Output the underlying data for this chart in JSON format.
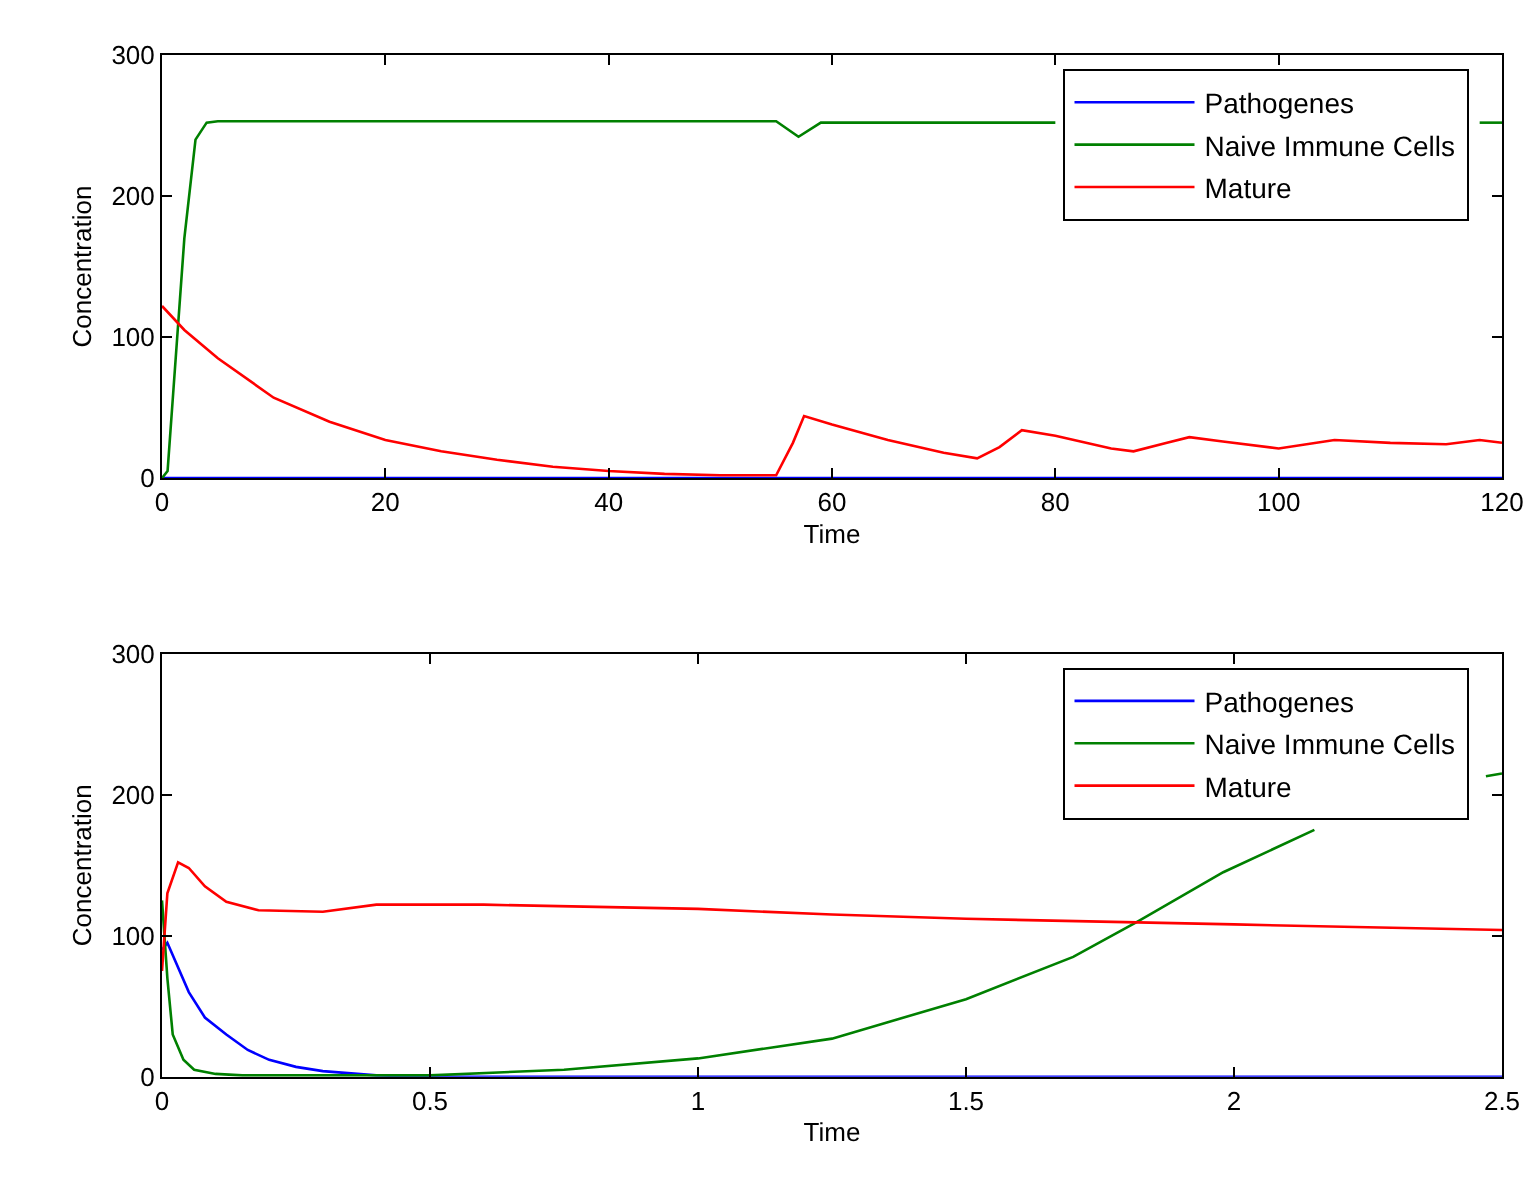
{
  "chart_data": [
    {
      "type": "line",
      "xlabel": "Time",
      "ylabel": "Concentration",
      "xlim": [
        0,
        120
      ],
      "ylim": [
        0,
        300
      ],
      "xticks": [
        0,
        20,
        40,
        60,
        80,
        100,
        120
      ],
      "yticks": [
        0,
        100,
        200,
        300
      ],
      "grid": false,
      "legend": "top right",
      "series": [
        {
          "name": "Pathogenes",
          "color": "#0000ff",
          "x": [
            0,
            20,
            40,
            60,
            80,
            100,
            120
          ],
          "values": [
            0,
            0,
            0,
            0,
            0,
            0,
            0
          ]
        },
        {
          "name": "Naive Immune Cells",
          "color": "#008000",
          "x": [
            0,
            0.5,
            1,
            2,
            3,
            4,
            5,
            20,
            40,
            55,
            57,
            59,
            80,
            100,
            118,
            120
          ],
          "values": [
            0,
            5,
            60,
            170,
            240,
            252,
            253,
            253,
            253,
            253,
            242,
            252,
            252,
            null,
            252,
            252
          ]
        },
        {
          "name": "Mature",
          "color": "#ff0000",
          "x": [
            0,
            2,
            5,
            10,
            15,
            20,
            25,
            30,
            35,
            40,
            45,
            50,
            55,
            56.5,
            57.5,
            60,
            65,
            70,
            73,
            75,
            77,
            80,
            85,
            87,
            90,
            92,
            95,
            100,
            105,
            110,
            115,
            118,
            120
          ],
          "values": [
            122,
            105,
            85,
            57,
            40,
            27,
            19,
            13,
            8,
            5,
            3,
            2,
            2,
            25,
            44,
            38,
            27,
            18,
            14,
            22,
            34,
            30,
            21,
            19,
            25,
            29,
            26,
            21,
            27,
            25,
            24,
            27,
            25
          ]
        }
      ]
    },
    {
      "type": "line",
      "xlabel": "Time",
      "ylabel": "Concentration",
      "xlim": [
        0,
        2.5
      ],
      "ylim": [
        0,
        300
      ],
      "xticks": [
        0,
        0.5,
        1,
        1.5,
        2,
        2.5
      ],
      "yticks": [
        0,
        100,
        200,
        300
      ],
      "grid": false,
      "legend": "top right",
      "series": [
        {
          "name": "Pathogenes",
          "color": "#0000ff",
          "x": [
            0,
            0.01,
            0.05,
            0.08,
            0.12,
            0.16,
            0.2,
            0.25,
            0.3,
            0.4,
            0.5,
            1,
            1.5,
            2,
            2.5
          ],
          "values": [
            90,
            95,
            60,
            42,
            30,
            19,
            12,
            7,
            4,
            1,
            0,
            0,
            0,
            0,
            0
          ]
        },
        {
          "name": "Naive Immune Cells",
          "color": "#008000",
          "x": [
            0,
            0.01,
            0.02,
            0.04,
            0.06,
            0.1,
            0.15,
            0.5,
            0.75,
            1,
            1.25,
            1.5,
            1.7,
            1.82,
            1.98,
            2.15,
            2.2,
            2.47,
            2.5
          ],
          "values": [
            125,
            70,
            30,
            12,
            5,
            2,
            1,
            1,
            5,
            13,
            27,
            55,
            85,
            110,
            145,
            175,
            null,
            213,
            215
          ]
        },
        {
          "name": "Mature",
          "color": "#ff0000",
          "x": [
            0,
            0.01,
            0.03,
            0.05,
            0.08,
            0.12,
            0.18,
            0.3,
            0.4,
            0.6,
            1,
            1.25,
            1.5,
            2,
            2.5
          ],
          "values": [
            75,
            130,
            152,
            148,
            135,
            124,
            118,
            117,
            122,
            122,
            119,
            115,
            112,
            108,
            104
          ]
        }
      ]
    }
  ]
}
